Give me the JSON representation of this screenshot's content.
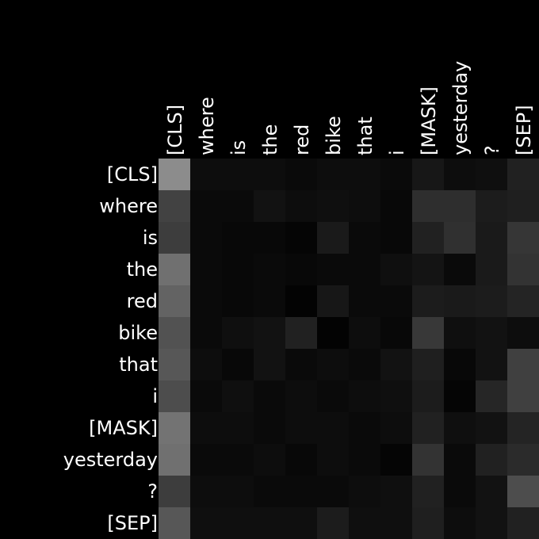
{
  "chart_data": {
    "type": "heatmap",
    "title": "",
    "xlabel": "",
    "ylabel": "",
    "x_tokens": [
      "[CLS]",
      "where",
      "is",
      "the",
      "red",
      "bike",
      "that",
      "i",
      "[MASK]",
      "yesterday",
      "?",
      "[SEP]"
    ],
    "y_tokens": [
      "[CLS]",
      "where",
      "is",
      "the",
      "red",
      "bike",
      "that",
      "i",
      "[MASK]",
      "yesterday",
      "?",
      "[SEP]"
    ],
    "colormap": "gray",
    "background": "#000000",
    "value_range": [
      0,
      1
    ],
    "values": [
      [
        0.55,
        0.05,
        0.05,
        0.05,
        0.04,
        0.05,
        0.05,
        0.04,
        0.09,
        0.05,
        0.06,
        0.13
      ],
      [
        0.26,
        0.04,
        0.04,
        0.07,
        0.05,
        0.06,
        0.05,
        0.03,
        0.18,
        0.18,
        0.11,
        0.12
      ],
      [
        0.24,
        0.04,
        0.03,
        0.03,
        0.02,
        0.1,
        0.04,
        0.03,
        0.13,
        0.19,
        0.1,
        0.21
      ],
      [
        0.44,
        0.04,
        0.03,
        0.04,
        0.03,
        0.04,
        0.04,
        0.06,
        0.08,
        0.04,
        0.1,
        0.2
      ],
      [
        0.39,
        0.04,
        0.03,
        0.04,
        0.01,
        0.09,
        0.04,
        0.04,
        0.11,
        0.1,
        0.11,
        0.14
      ],
      [
        0.32,
        0.04,
        0.06,
        0.07,
        0.13,
        0.01,
        0.05,
        0.03,
        0.22,
        0.06,
        0.07,
        0.05
      ],
      [
        0.34,
        0.05,
        0.03,
        0.07,
        0.04,
        0.05,
        0.04,
        0.07,
        0.12,
        0.03,
        0.07,
        0.25
      ],
      [
        0.3,
        0.04,
        0.06,
        0.04,
        0.05,
        0.04,
        0.05,
        0.06,
        0.11,
        0.02,
        0.15,
        0.25
      ],
      [
        0.45,
        0.05,
        0.05,
        0.04,
        0.05,
        0.05,
        0.04,
        0.05,
        0.13,
        0.06,
        0.07,
        0.14
      ],
      [
        0.44,
        0.04,
        0.04,
        0.05,
        0.03,
        0.05,
        0.04,
        0.02,
        0.2,
        0.04,
        0.13,
        0.17
      ],
      [
        0.24,
        0.05,
        0.05,
        0.04,
        0.04,
        0.04,
        0.05,
        0.06,
        0.13,
        0.04,
        0.07,
        0.3
      ],
      [
        0.34,
        0.06,
        0.06,
        0.06,
        0.06,
        0.11,
        0.06,
        0.06,
        0.12,
        0.05,
        0.07,
        0.13
      ]
    ]
  }
}
